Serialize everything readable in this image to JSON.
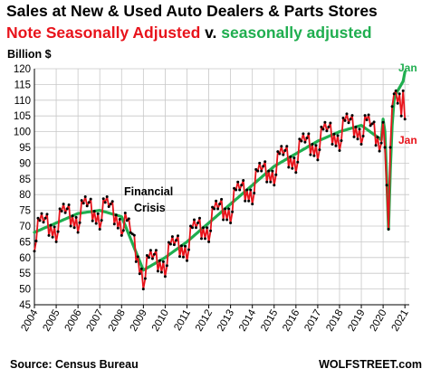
{
  "chart_data": {
    "type": "line",
    "title": "Sales at New & Used Auto Dealers & Parts Stores",
    "subtitle": {
      "part1": "Note Seasonally  Adjusted",
      "part2": " v. ",
      "part3": "seasonally  adjusted"
    },
    "ylabel": "Billion $",
    "ylim": [
      45,
      120
    ],
    "yticks": [
      "45",
      "50",
      "55",
      "60",
      "65",
      "70",
      "75",
      "80",
      "85",
      "90",
      "95",
      "100",
      "105",
      "110",
      "115",
      "120"
    ],
    "x_tick_labels": [
      "2004",
      "2005",
      "2006",
      "2007",
      "2008",
      "2009",
      "2010",
      "2011",
      "2012",
      "2013",
      "2014",
      "2015",
      "2016",
      "2017",
      "2018",
      "2019",
      "2020",
      "2021"
    ],
    "xlim": [
      2004,
      2021.2
    ],
    "grid": true,
    "annotations": {
      "financial_crisis": [
        "Financial",
        "Crisis"
      ],
      "jan_sa": "Jan",
      "jan_nsa": "Jan"
    },
    "colors": {
      "nsa": "#e8131b",
      "sa": "#1fae4f",
      "markers": "#000000",
      "grid": "#c8c8c8"
    },
    "series": [
      {
        "name": "Note Seasonally Adjusted",
        "annual_base": [
          68,
          71,
          74,
          75,
          73,
          56,
          60,
          65,
          71,
          77,
          83,
          89,
          93,
          97,
          100,
          102,
          97
        ],
        "seasonal": [
          -6,
          -3,
          4,
          3,
          5,
          2,
          3,
          4,
          -3,
          0,
          -4,
          -1
        ],
        "jan_2021": 104
      },
      {
        "name": "seasonally adjusted",
        "annual_base": [
          68,
          71,
          74,
          75,
          73,
          56,
          60,
          65,
          71,
          77,
          83,
          89,
          93,
          97,
          100,
          102,
          97
        ],
        "jan_2021": 119
      }
    ],
    "covid_2020": {
      "nsa": [
        103,
        95,
        83,
        69,
        95,
        108,
        112,
        113,
        109,
        112,
        105,
        113
      ],
      "sa": [
        104,
        100,
        85,
        69,
        88,
        102,
        110,
        112,
        113,
        114,
        115,
        116
      ]
    }
  },
  "source_text": "Source: Census Bureau",
  "brand_text": "WOLFSTREET.com"
}
